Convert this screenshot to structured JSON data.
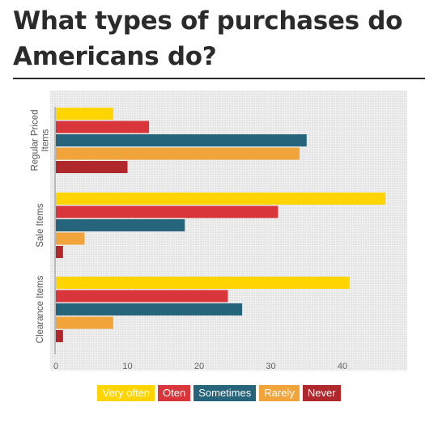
{
  "title": "What types of purchases do Americans do?",
  "colors": {
    "very_often": "#FFD400",
    "oten": "#D8363A",
    "sometimes": "#25647A",
    "rarely": "#F0A43A",
    "never": "#B0282C",
    "plot_bg": "#ececec",
    "grid": "#ffffff",
    "axis": "#555555"
  },
  "chart_data": {
    "type": "bar",
    "orientation": "horizontal",
    "title": "What types of purchases do Americans do?",
    "categories": [
      "Regular Priced Items",
      "Sale Items",
      "Clearance Items"
    ],
    "category_labels": [
      [
        "Regular Priced",
        "Items"
      ],
      [
        "Sale Items"
      ],
      [
        "Clearance Items"
      ]
    ],
    "series": [
      {
        "name": "Very often",
        "color_key": "very_often",
        "values": [
          8,
          46,
          41
        ]
      },
      {
        "name": "Oten",
        "color_key": "oten",
        "values": [
          13,
          31,
          24
        ]
      },
      {
        "name": "Sometimes",
        "color_key": "sometimes",
        "values": [
          35,
          18,
          26
        ]
      },
      {
        "name": "Rarely",
        "color_key": "rarely",
        "values": [
          34,
          4,
          8
        ]
      },
      {
        "name": "Never",
        "color_key": "never",
        "values": [
          10,
          1,
          1
        ]
      }
    ],
    "xlim": [
      0,
      49
    ],
    "xticks": [
      0,
      10,
      20,
      30,
      40
    ],
    "xlabel": "",
    "ylabel": "",
    "grid": "dotted minor grid",
    "legend_position": "bottom"
  }
}
